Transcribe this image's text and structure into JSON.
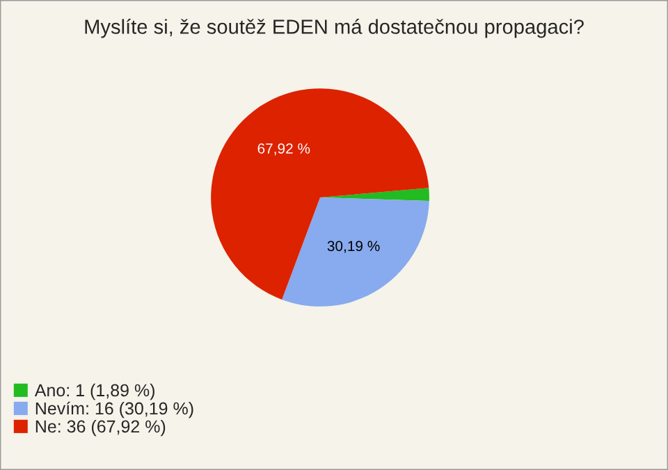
{
  "chart_data": {
    "type": "pie",
    "title": "Myslíte si, že soutěž EDEN má dostatečnou propagaci?",
    "categories": [
      "Ano: 1 (1,89 %)",
      "Nevím: 16 (30,19 %)",
      "Ne: 36 (67,92 %)"
    ],
    "values": [
      1.89,
      30.19,
      67.92
    ],
    "colors": [
      "#22bb22",
      "#88aaee",
      "#dd2200"
    ],
    "value_labels": [
      null,
      "30,19 %",
      "67,92 %"
    ],
    "legend": "bottom left"
  }
}
